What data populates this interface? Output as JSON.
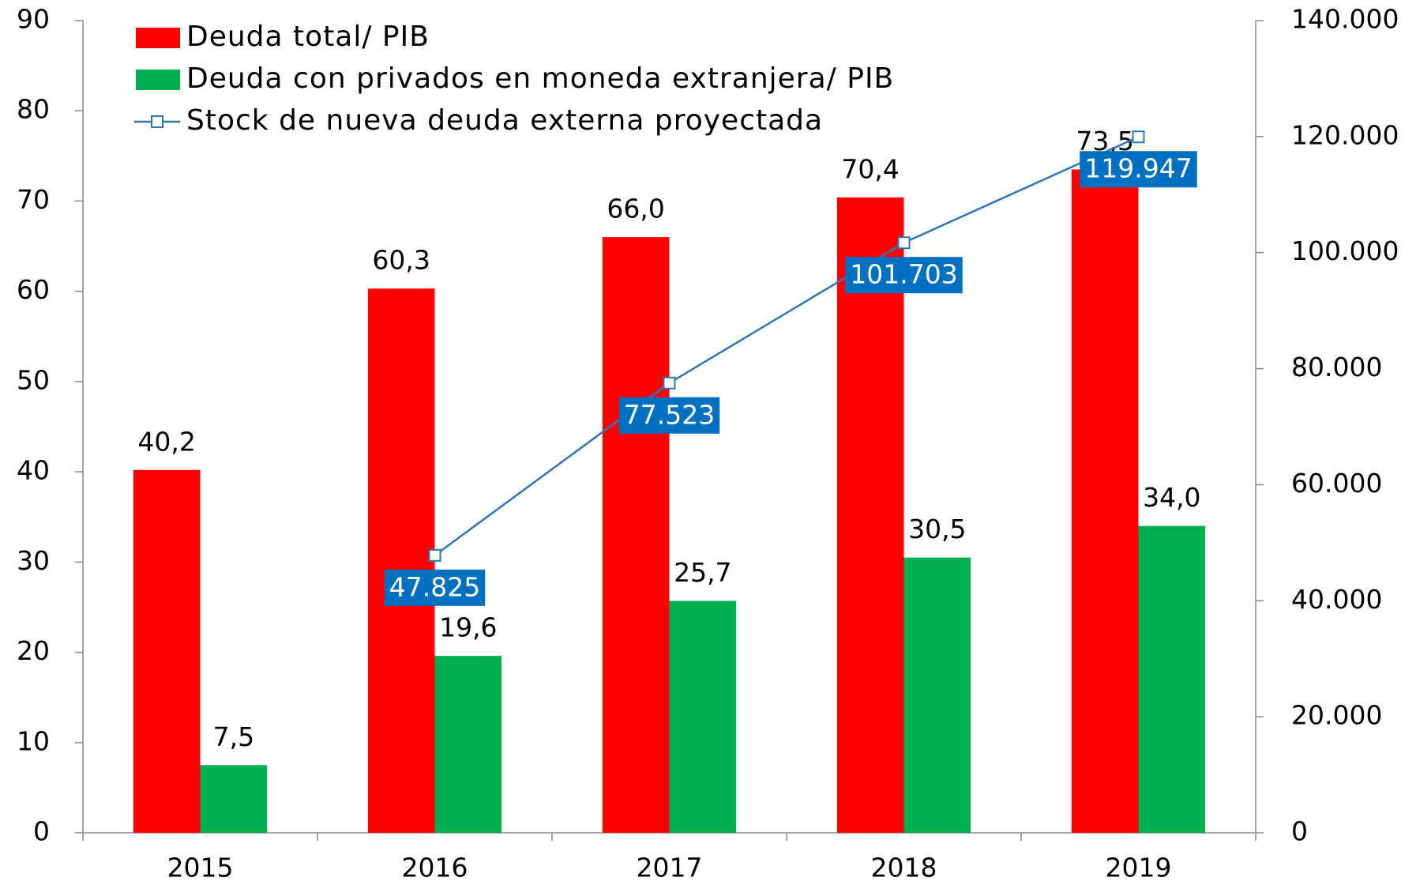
{
  "chart_data": {
    "type": "bar",
    "categories": [
      "2015",
      "2016",
      "2017",
      "2018",
      "2019"
    ],
    "series": [
      {
        "name": "Deuda total/ PIB",
        "color": "#ff0000",
        "values": [
          40.2,
          60.3,
          66.0,
          70.4,
          73.5
        ],
        "value_labels": [
          "40,2",
          "60,3",
          "66,0",
          "70,4",
          "73,5"
        ]
      },
      {
        "name": "Deuda con privados en moneda extranjera/ PIB",
        "color": "#00b050",
        "values": [
          7.5,
          19.6,
          25.7,
          30.5,
          34.0
        ],
        "value_labels": [
          "7,5",
          "19,6",
          "25,7",
          "30,5",
          "34,0"
        ]
      },
      {
        "name": "Stock de nueva deuda externa proyectada",
        "type": "line",
        "axis": "y2",
        "color": "#2e75b6",
        "values": [
          null,
          47825,
          77523,
          101703,
          119947
        ],
        "value_labels": [
          null,
          "47.825",
          "77.523",
          "101.703",
          "119.947"
        ]
      }
    ],
    "ylim": [
      0,
      90
    ],
    "yticks": [
      0,
      10,
      20,
      30,
      40,
      50,
      60,
      70,
      80,
      90
    ],
    "y2lim": [
      0,
      140000
    ],
    "y2ticks": [
      0,
      {
        "value": 20000,
        "label": "20.000"
      },
      {
        "value": 40000,
        "label": "40.000"
      },
      {
        "value": 60000,
        "label": "60.000"
      },
      {
        "value": 80000,
        "label": "80.000"
      },
      {
        "value": 100000,
        "label": "100.000"
      },
      {
        "value": 120000,
        "label": "120.000"
      },
      {
        "value": 140000,
        "label": "140.000"
      }
    ],
    "legend": "top-left"
  }
}
